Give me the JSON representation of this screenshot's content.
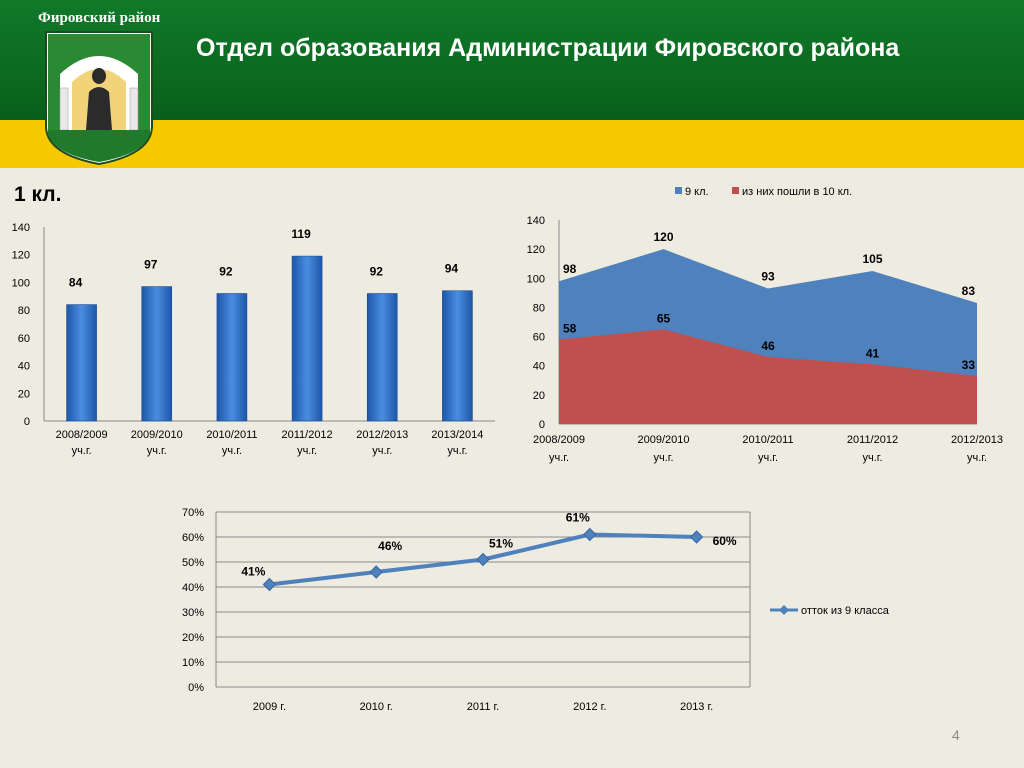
{
  "header": {
    "district_name": "Фировский район",
    "title": "Отдел образования Администрации Фировского района"
  },
  "section_title": "1 кл.",
  "slide_number": "4",
  "colors": {
    "header_green": "#0a6a1a",
    "header_yellow": "#f5c800",
    "background": "#eeece1",
    "bar_blue": "#2e6fc4",
    "area_blue": "#4f81bd",
    "area_red": "#c0504d",
    "line_blue": "#4f81bd"
  },
  "icons": {
    "coat_of_arms": "coat-of-arms-icon"
  },
  "chart_data": [
    {
      "type": "bar",
      "title": "",
      "categories": [
        [
          "2008/2009",
          "уч.г."
        ],
        [
          "2009/2010",
          "уч.г."
        ],
        [
          "2010/2011",
          "уч.г."
        ],
        [
          "2011/2012",
          "уч.г."
        ],
        [
          "2012/2013",
          "уч.г."
        ],
        [
          "2013/2014",
          "уч.г."
        ]
      ],
      "values": [
        84,
        97,
        92,
        119,
        92,
        94
      ],
      "ylim": [
        0,
        140
      ],
      "yticks": [
        0,
        20,
        40,
        60,
        80,
        100,
        120,
        140
      ],
      "grid": false,
      "data_labels": true
    },
    {
      "type": "area",
      "title": "",
      "categories": [
        [
          "2008/2009",
          "уч.г."
        ],
        [
          "2009/2010",
          "уч.г."
        ],
        [
          "2010/2011",
          "уч.г."
        ],
        [
          "2011/2012",
          "уч.г."
        ],
        [
          "2012/2013",
          "уч.г."
        ]
      ],
      "series": [
        {
          "name": "9 кл.",
          "values": [
            98,
            120,
            93,
            105,
            83
          ],
          "color": "#4f81bd"
        },
        {
          "name": "из них пошли в 10 кл.",
          "values": [
            58,
            65,
            46,
            41,
            33
          ],
          "color": "#c0504d"
        }
      ],
      "ylim": [
        0,
        140
      ],
      "yticks": [
        0,
        20,
        40,
        60,
        80,
        100,
        120,
        140
      ],
      "legend": "top",
      "grid": false,
      "data_labels": true
    },
    {
      "type": "line",
      "title": "",
      "categories": [
        "2009 г.",
        "2010 г.",
        "2011 г.",
        "2012 г.",
        "2013 г."
      ],
      "series": [
        {
          "name": "отток из 9 класса",
          "values": [
            41,
            46,
            51,
            61,
            60
          ],
          "color": "#4f81bd"
        }
      ],
      "value_labels": [
        "41%",
        "46%",
        "51%",
        "61%",
        "60%"
      ],
      "ylim": [
        0,
        70
      ],
      "yticks": [
        "0%",
        "10%",
        "20%",
        "30%",
        "40%",
        "50%",
        "60%",
        "70%"
      ],
      "legend": "right",
      "grid": true,
      "data_labels": true
    }
  ]
}
